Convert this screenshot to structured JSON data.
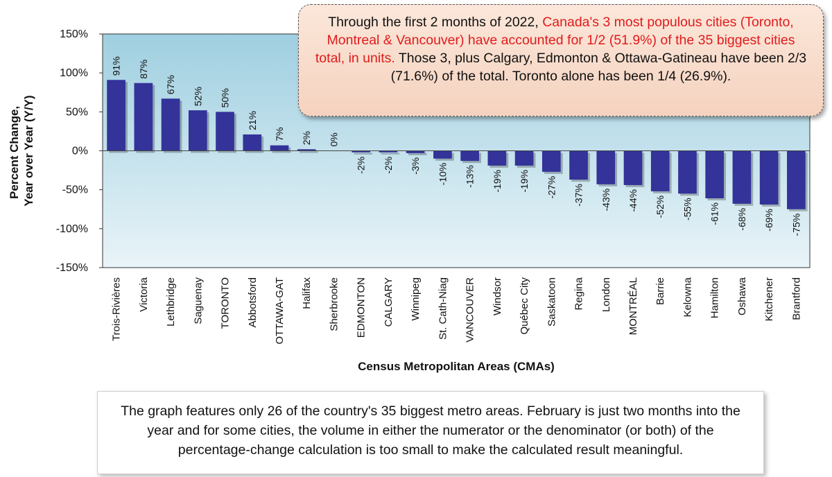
{
  "chart_data": {
    "type": "bar",
    "categories": [
      "Trois-Rivières",
      "Victoria",
      "Lethbridge",
      "Saguenay",
      "TORONTO",
      "Abbotsford",
      "OTTAWA-GAT",
      "Halifax",
      "Sherbrooke",
      "EDMONTON",
      "CALGARY",
      "Winnipeg",
      "St. Cath-Niag",
      "VANCOUVER",
      "Windsor",
      "Québec City",
      "Saskatoon",
      "Regina",
      "London",
      "MONTRÉAL",
      "Barrie",
      "Kelowna",
      "Hamilton",
      "Oshawa",
      "Kitchener",
      "Brantford"
    ],
    "values": [
      91,
      87,
      67,
      52,
      50,
      21,
      7,
      2,
      0,
      -2,
      -2,
      -3,
      -10,
      -13,
      -19,
      -19,
      -27,
      -37,
      -43,
      -44,
      -52,
      -55,
      -61,
      -68,
      -69,
      -75
    ],
    "data_labels": [
      "91%",
      "87%",
      "67%",
      "52%",
      "50%",
      "21%",
      "7%",
      "2%",
      "0%",
      "-2%",
      "-2%",
      "-3%",
      "-10%",
      "-13%",
      "-19%",
      "-19%",
      "-27%",
      "-37%",
      "-43%",
      "-44%",
      "-52%",
      "-55%",
      "-61%",
      "-68%",
      "-69%",
      "-75%"
    ],
    "xlabel": "Census Metropolitan Areas (CMAs)",
    "ylabel_lines": [
      "Percent Change,",
      "Year over Year (Y/Y)"
    ],
    "ylim": [
      -150,
      150
    ],
    "yticks": [
      150,
      100,
      50,
      0,
      -50,
      -100,
      -150
    ],
    "ytick_labels": [
      "150%",
      "100%",
      "50%",
      "0%",
      "-50%",
      "-100%",
      "-150%"
    ],
    "grid": false,
    "bar_color": "#333399",
    "plot_background": [
      "#9fcfe0",
      "#e9f4f8"
    ]
  },
  "callout": {
    "text_1": "Through the first 2 months of 2022, ",
    "text_red": "Canada's 3 most populous cities (Toronto, Montreal & Vancouver) have accounted for 1/2 (51.9%) of the 35 biggest cities total, in units.",
    "text_2": " Those 3, plus Calgary, Edmonton & Ottawa-Gatineau have been  2/3 (71.6%) of the total. Toronto alone has been 1/4 (26.9%).",
    "red_color": "#e01b1b"
  },
  "note": {
    "text": "The graph features only 26 of the country's 35 biggest metro areas. February is just two months into the year and for some cities, the volume in either the numerator or the denominator (or both)  of the percentage-change calculation is too small to make the calculated result meaningful."
  }
}
